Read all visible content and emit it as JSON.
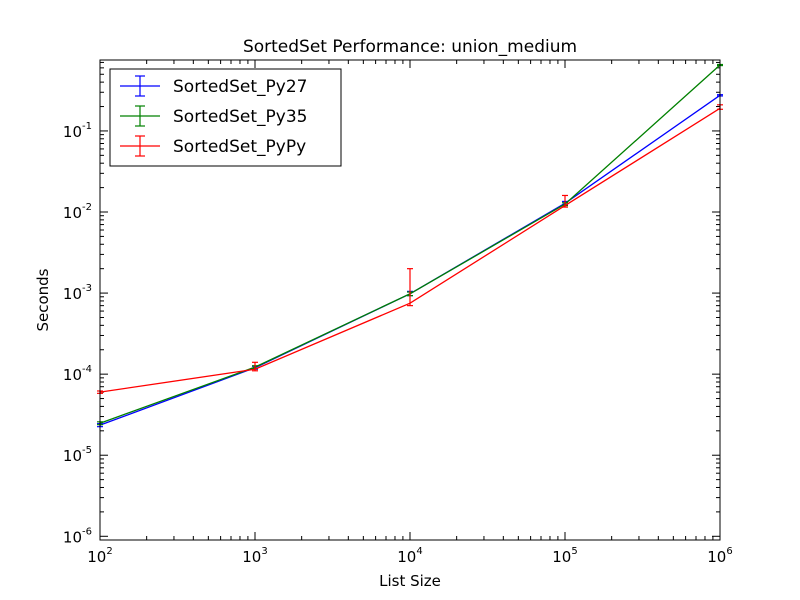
{
  "chart_data": {
    "type": "line",
    "title": "SortedSet Performance: union_medium",
    "xlabel": "List Size",
    "ylabel": "Seconds",
    "x_scale": "log",
    "y_scale": "log",
    "xlim": [
      100,
      1000000
    ],
    "ylim": [
      9e-07,
      0.75
    ],
    "x_ticks": [
      {
        "value": 100,
        "base": "10",
        "exp": "2"
      },
      {
        "value": 1000,
        "base": "10",
        "exp": "3"
      },
      {
        "value": 10000,
        "base": "10",
        "exp": "4"
      },
      {
        "value": 100000,
        "base": "10",
        "exp": "5"
      },
      {
        "value": 1000000,
        "base": "10",
        "exp": "6"
      }
    ],
    "y_ticks": [
      {
        "value": 1e-06,
        "base": "10",
        "exp": "-6"
      },
      {
        "value": 1e-05,
        "base": "10",
        "exp": "-5"
      },
      {
        "value": 0.0001,
        "base": "10",
        "exp": "-4"
      },
      {
        "value": 0.001,
        "base": "10",
        "exp": "-3"
      },
      {
        "value": 0.01,
        "base": "10",
        "exp": "-2"
      },
      {
        "value": 0.1,
        "base": "10",
        "exp": "-1"
      }
    ],
    "grid": false,
    "legend_position": "top-left",
    "series": [
      {
        "name": "SortedSet_Py27",
        "color": "#0000ff",
        "x": [
          100,
          1000,
          10000,
          100000,
          1000000
        ],
        "y": [
          2.35e-05,
          0.00012,
          0.00098,
          0.0128,
          0.275
        ],
        "err_low": [
          2.25e-05,
          0.000115,
          0.00093,
          0.0123,
          0.27
        ],
        "err_high": [
          2.45e-05,
          0.000125,
          0.00105,
          0.0135,
          0.28
        ]
      },
      {
        "name": "SortedSet_Py35",
        "color": "#008000",
        "x": [
          100,
          1000,
          10000,
          100000,
          1000000
        ],
        "y": [
          2.48e-05,
          0.000122,
          0.00098,
          0.0125,
          0.65
        ],
        "err_low": [
          2.38e-05,
          0.000117,
          0.00093,
          0.012,
          0.64
        ],
        "err_high": [
          2.58e-05,
          0.000127,
          0.00103,
          0.013,
          0.66
        ]
      },
      {
        "name": "SortedSet_PyPy",
        "color": "#ff0000",
        "x": [
          100,
          1000,
          10000,
          100000,
          1000000
        ],
        "y": [
          6e-05,
          0.000115,
          0.00075,
          0.012,
          0.19
        ],
        "err_low": [
          5.8e-05,
          0.00011,
          0.0007,
          0.0115,
          0.185
        ],
        "err_high": [
          6.2e-05,
          0.00014,
          0.002,
          0.016,
          0.21
        ]
      }
    ]
  }
}
